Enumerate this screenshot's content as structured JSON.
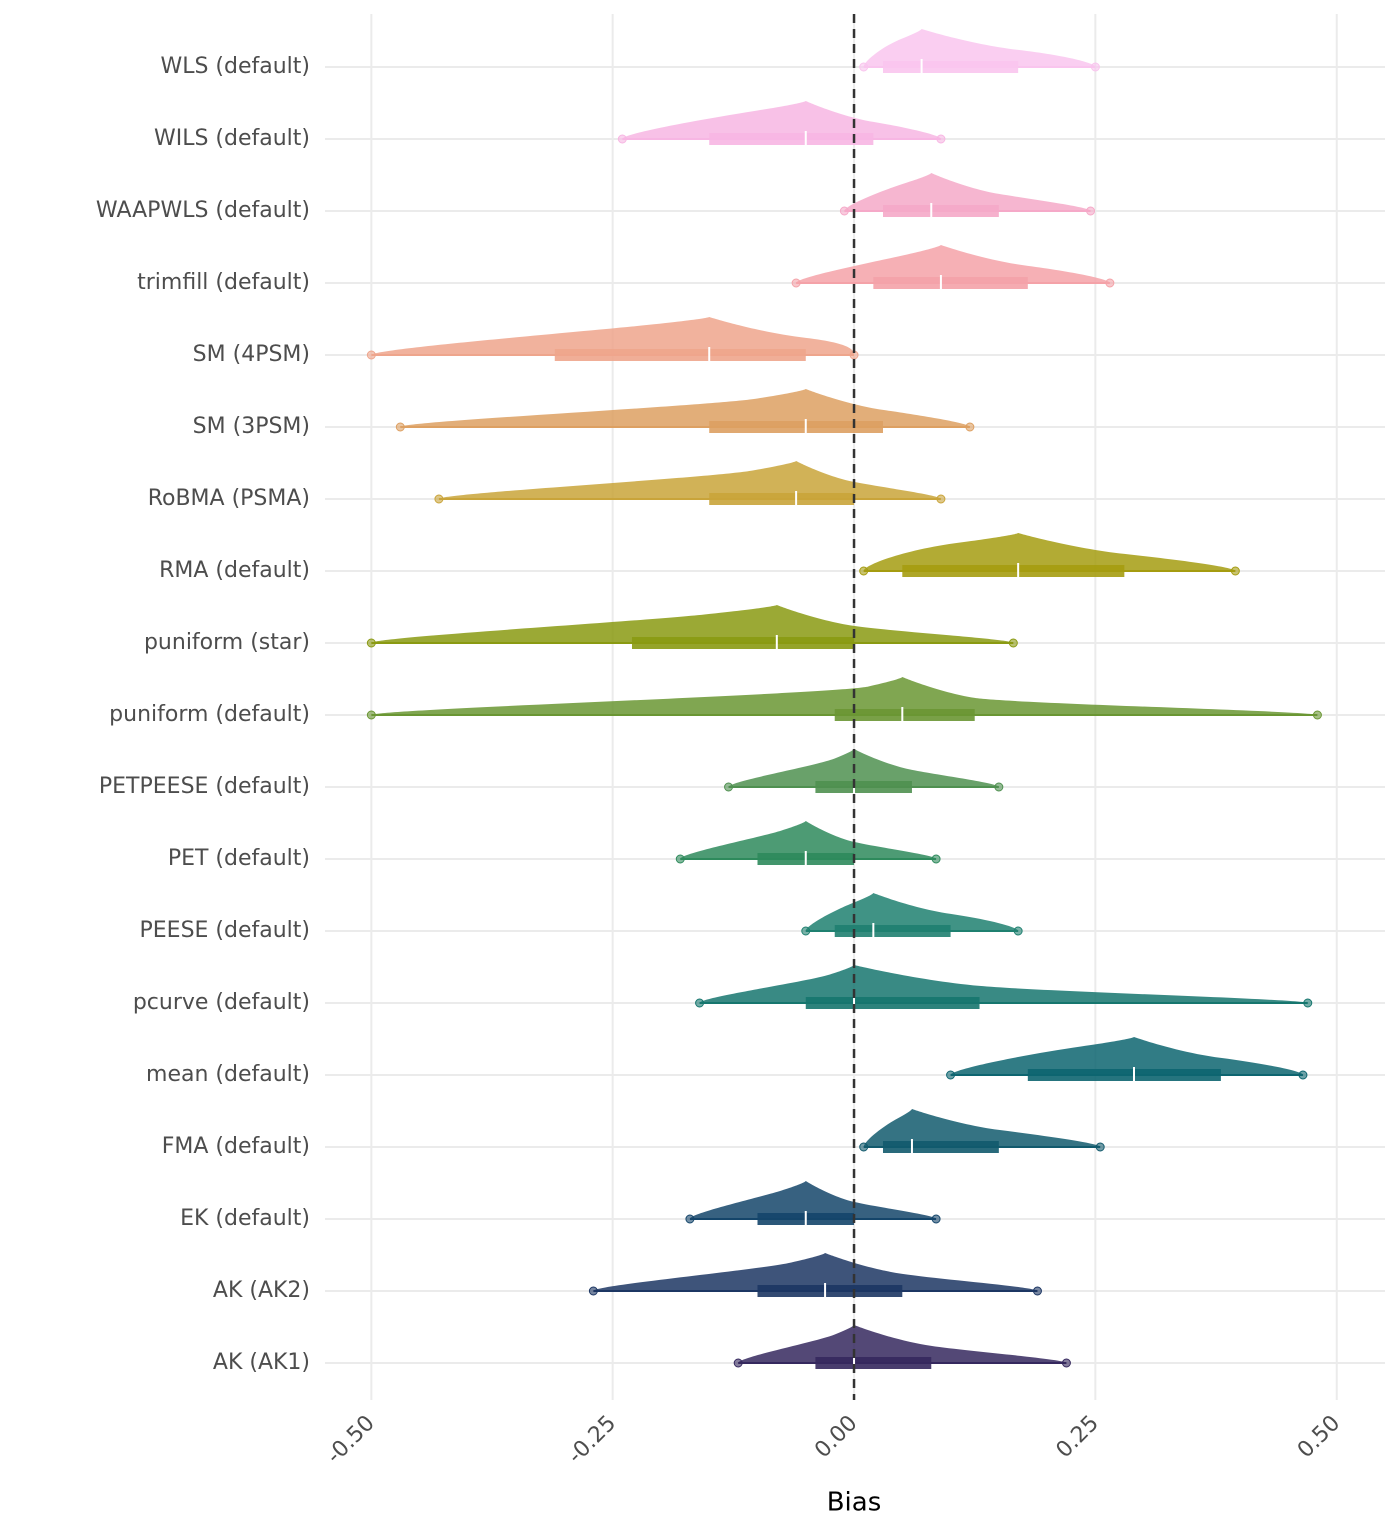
{
  "chart_data": {
    "type": "raincloud",
    "x_label": "Bias",
    "categories": [
      "WLS (default)",
      "WILS (default)",
      "WAAPWLS (default)",
      "trimfill (default)",
      "SM (4PSM)",
      "SM (3PSM)",
      "RoBMA (PSMA)",
      "RMA (default)",
      "puniform (star)",
      "puniform (default)",
      "PETPEESE (default)",
      "PET (default)",
      "PEESE (default)",
      "pcurve (default)",
      "mean (default)",
      "FMA (default)",
      "EK (default)",
      "AK (AK2)",
      "AK (AK1)"
    ],
    "colors": [
      "#f9c5ee",
      "#f7b6e3",
      "#f5a9c8",
      "#f4a2a8",
      "#eea58c",
      "#dda062",
      "#c9a43a",
      "#a59c10",
      "#8a9a12",
      "#6a9633",
      "#4f9050",
      "#2e8a5c",
      "#1f8070",
      "#16766e",
      "#0d6570",
      "#125a6d",
      "#14456a",
      "#1c3663",
      "#35285e"
    ],
    "min": [
      0.01,
      -0.24,
      -0.01,
      -0.06,
      -0.5,
      -0.47,
      -0.43,
      0.01,
      -0.5,
      -0.5,
      -0.13,
      -0.18,
      -0.05,
      -0.16,
      0.1,
      0.01,
      -0.17,
      -0.27,
      -0.12
    ],
    "q1": [
      0.03,
      -0.15,
      0.03,
      0.02,
      -0.31,
      -0.15,
      -0.15,
      0.05,
      -0.23,
      -0.02,
      -0.04,
      -0.1,
      -0.02,
      -0.05,
      0.18,
      0.03,
      -0.1,
      -0.1,
      -0.04
    ],
    "median": [
      0.07,
      -0.05,
      0.08,
      0.09,
      -0.15,
      -0.05,
      -0.06,
      0.17,
      -0.08,
      0.05,
      0.0,
      -0.05,
      0.02,
      0.0,
      0.29,
      0.06,
      -0.05,
      -0.03,
      0.0
    ],
    "q3": [
      0.17,
      0.02,
      0.15,
      0.18,
      -0.05,
      0.03,
      0.0,
      0.28,
      0.0,
      0.125,
      0.06,
      0.0,
      0.1,
      0.13,
      0.38,
      0.15,
      0.0,
      0.05,
      0.08
    ],
    "max": [
      0.25,
      0.09,
      0.245,
      0.265,
      0.0,
      0.12,
      0.09,
      0.395,
      0.165,
      0.48,
      0.15,
      0.085,
      0.17,
      0.47,
      0.465,
      0.255,
      0.085,
      0.19,
      0.22
    ],
    "xlim": [
      -0.548,
      0.55
    ],
    "xticks": [
      {
        "value": -0.5,
        "label": "-0.50"
      },
      {
        "value": -0.25,
        "label": "-0.25"
      },
      {
        "value": 0,
        "label": "0.00"
      },
      {
        "value": 0.25,
        "label": "0.25"
      },
      {
        "value": 0.5,
        "label": "0.50"
      }
    ],
    "reference_line": 0,
    "grid": true
  }
}
